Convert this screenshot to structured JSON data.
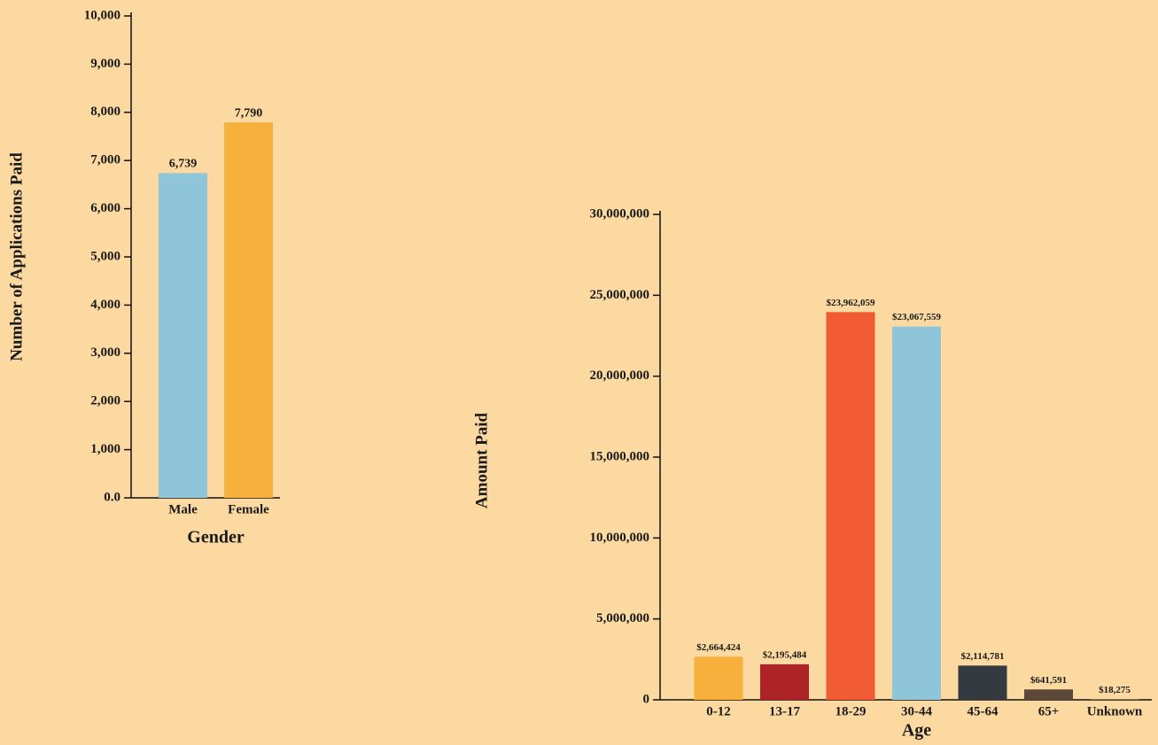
{
  "chart_data": [
    {
      "type": "bar",
      "x_label": "Gender",
      "y_label": "Number of Applications Paid",
      "categories": [
        "Male",
        "Female"
      ],
      "values": [
        6739,
        7790
      ],
      "value_labels": [
        "6,739",
        "7,790"
      ],
      "colors": [
        "#8ec5d8",
        "#f8b03c"
      ],
      "ylim": [
        0,
        10000
      ],
      "yticks": [
        {
          "value": 0,
          "label": "0.0"
        },
        {
          "value": 1000,
          "label": "1,000"
        },
        {
          "value": 2000,
          "label": "2,000"
        },
        {
          "value": 3000,
          "label": "3,000"
        },
        {
          "value": 4000,
          "label": "4,000"
        },
        {
          "value": 5000,
          "label": "5,000"
        },
        {
          "value": 6000,
          "label": "6,000"
        },
        {
          "value": 7000,
          "label": "7,000"
        },
        {
          "value": 8000,
          "label": "8,000"
        },
        {
          "value": 9000,
          "label": "9,000"
        },
        {
          "value": 10000,
          "label": "10,000"
        }
      ]
    },
    {
      "type": "bar",
      "x_label": "Age",
      "y_label": "Amount Paid",
      "categories": [
        "0-12",
        "13-17",
        "18-29",
        "30-44",
        "45-64",
        "65+",
        "Unknown"
      ],
      "values": [
        2664424,
        2195484,
        23962059,
        23067559,
        2114781,
        641591,
        18275
      ],
      "value_labels": [
        "$2,664,424",
        "$2,195,484",
        "$23,962,059",
        "$23,067,559",
        "$2,114,781",
        "$641,591",
        "$18,275"
      ],
      "colors": [
        "#f8b03c",
        "#ae2326",
        "#f05b33",
        "#8ec5d8",
        "#343a3f",
        "#5b4838",
        "#e9b02f"
      ],
      "ylim": [
        0,
        30000000
      ],
      "yticks": [
        0,
        {
          "value": 5000000,
          "label": "5,000,000"
        },
        {
          "value": 10000000,
          "label": "10,000,000"
        },
        {
          "value": 15000000,
          "label": "15,000,000"
        },
        {
          "value": 20000000,
          "label": "20,000,000"
        },
        {
          "value": 25000000,
          "label": "25,000,000"
        },
        {
          "value": 30000000,
          "label": "30,000,000"
        }
      ]
    }
  ]
}
